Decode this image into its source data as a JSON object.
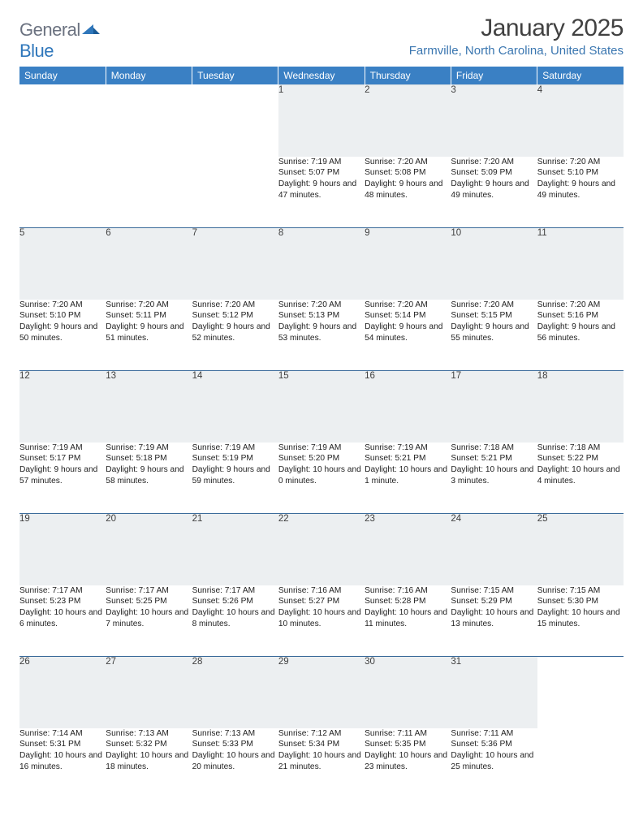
{
  "logo": {
    "word1": "General",
    "word2": "Blue",
    "text_color": "#6b7280",
    "accent_color": "#2f77bb"
  },
  "title": "January 2025",
  "location": "Farmville, North Carolina, United States",
  "colors": {
    "header_bg": "#3a80c4",
    "header_text": "#ffffff",
    "daynum_bg": "#eceff1",
    "daynum_text": "#3f3f3f",
    "row_divider": "#3a6a9a",
    "title_color": "#414141",
    "location_color": "#3a76b0"
  },
  "fonts": {
    "title_size": 30,
    "location_size": 15,
    "weekday_size": 12,
    "daynum_size": 11.5,
    "detail_size": 10.2
  },
  "weekdays": [
    "Sunday",
    "Monday",
    "Tuesday",
    "Wednesday",
    "Thursday",
    "Friday",
    "Saturday"
  ],
  "weeks": [
    [
      null,
      null,
      null,
      {
        "day": "1",
        "sunrise": "7:19 AM",
        "sunset": "5:07 PM",
        "daylight": "9 hours and 47 minutes."
      },
      {
        "day": "2",
        "sunrise": "7:20 AM",
        "sunset": "5:08 PM",
        "daylight": "9 hours and 48 minutes."
      },
      {
        "day": "3",
        "sunrise": "7:20 AM",
        "sunset": "5:09 PM",
        "daylight": "9 hours and 49 minutes."
      },
      {
        "day": "4",
        "sunrise": "7:20 AM",
        "sunset": "5:10 PM",
        "daylight": "9 hours and 49 minutes."
      }
    ],
    [
      {
        "day": "5",
        "sunrise": "7:20 AM",
        "sunset": "5:10 PM",
        "daylight": "9 hours and 50 minutes."
      },
      {
        "day": "6",
        "sunrise": "7:20 AM",
        "sunset": "5:11 PM",
        "daylight": "9 hours and 51 minutes."
      },
      {
        "day": "7",
        "sunrise": "7:20 AM",
        "sunset": "5:12 PM",
        "daylight": "9 hours and 52 minutes."
      },
      {
        "day": "8",
        "sunrise": "7:20 AM",
        "sunset": "5:13 PM",
        "daylight": "9 hours and 53 minutes."
      },
      {
        "day": "9",
        "sunrise": "7:20 AM",
        "sunset": "5:14 PM",
        "daylight": "9 hours and 54 minutes."
      },
      {
        "day": "10",
        "sunrise": "7:20 AM",
        "sunset": "5:15 PM",
        "daylight": "9 hours and 55 minutes."
      },
      {
        "day": "11",
        "sunrise": "7:20 AM",
        "sunset": "5:16 PM",
        "daylight": "9 hours and 56 minutes."
      }
    ],
    [
      {
        "day": "12",
        "sunrise": "7:19 AM",
        "sunset": "5:17 PM",
        "daylight": "9 hours and 57 minutes."
      },
      {
        "day": "13",
        "sunrise": "7:19 AM",
        "sunset": "5:18 PM",
        "daylight": "9 hours and 58 minutes."
      },
      {
        "day": "14",
        "sunrise": "7:19 AM",
        "sunset": "5:19 PM",
        "daylight": "9 hours and 59 minutes."
      },
      {
        "day": "15",
        "sunrise": "7:19 AM",
        "sunset": "5:20 PM",
        "daylight": "10 hours and 0 minutes."
      },
      {
        "day": "16",
        "sunrise": "7:19 AM",
        "sunset": "5:21 PM",
        "daylight": "10 hours and 1 minute."
      },
      {
        "day": "17",
        "sunrise": "7:18 AM",
        "sunset": "5:21 PM",
        "daylight": "10 hours and 3 minutes."
      },
      {
        "day": "18",
        "sunrise": "7:18 AM",
        "sunset": "5:22 PM",
        "daylight": "10 hours and 4 minutes."
      }
    ],
    [
      {
        "day": "19",
        "sunrise": "7:17 AM",
        "sunset": "5:23 PM",
        "daylight": "10 hours and 6 minutes."
      },
      {
        "day": "20",
        "sunrise": "7:17 AM",
        "sunset": "5:25 PM",
        "daylight": "10 hours and 7 minutes."
      },
      {
        "day": "21",
        "sunrise": "7:17 AM",
        "sunset": "5:26 PM",
        "daylight": "10 hours and 8 minutes."
      },
      {
        "day": "22",
        "sunrise": "7:16 AM",
        "sunset": "5:27 PM",
        "daylight": "10 hours and 10 minutes."
      },
      {
        "day": "23",
        "sunrise": "7:16 AM",
        "sunset": "5:28 PM",
        "daylight": "10 hours and 11 minutes."
      },
      {
        "day": "24",
        "sunrise": "7:15 AM",
        "sunset": "5:29 PM",
        "daylight": "10 hours and 13 minutes."
      },
      {
        "day": "25",
        "sunrise": "7:15 AM",
        "sunset": "5:30 PM",
        "daylight": "10 hours and 15 minutes."
      }
    ],
    [
      {
        "day": "26",
        "sunrise": "7:14 AM",
        "sunset": "5:31 PM",
        "daylight": "10 hours and 16 minutes."
      },
      {
        "day": "27",
        "sunrise": "7:13 AM",
        "sunset": "5:32 PM",
        "daylight": "10 hours and 18 minutes."
      },
      {
        "day": "28",
        "sunrise": "7:13 AM",
        "sunset": "5:33 PM",
        "daylight": "10 hours and 20 minutes."
      },
      {
        "day": "29",
        "sunrise": "7:12 AM",
        "sunset": "5:34 PM",
        "daylight": "10 hours and 21 minutes."
      },
      {
        "day": "30",
        "sunrise": "7:11 AM",
        "sunset": "5:35 PM",
        "daylight": "10 hours and 23 minutes."
      },
      {
        "day": "31",
        "sunrise": "7:11 AM",
        "sunset": "5:36 PM",
        "daylight": "10 hours and 25 minutes."
      },
      null
    ]
  ],
  "labels": {
    "sunrise": "Sunrise:",
    "sunset": "Sunset:",
    "daylight": "Daylight:"
  }
}
